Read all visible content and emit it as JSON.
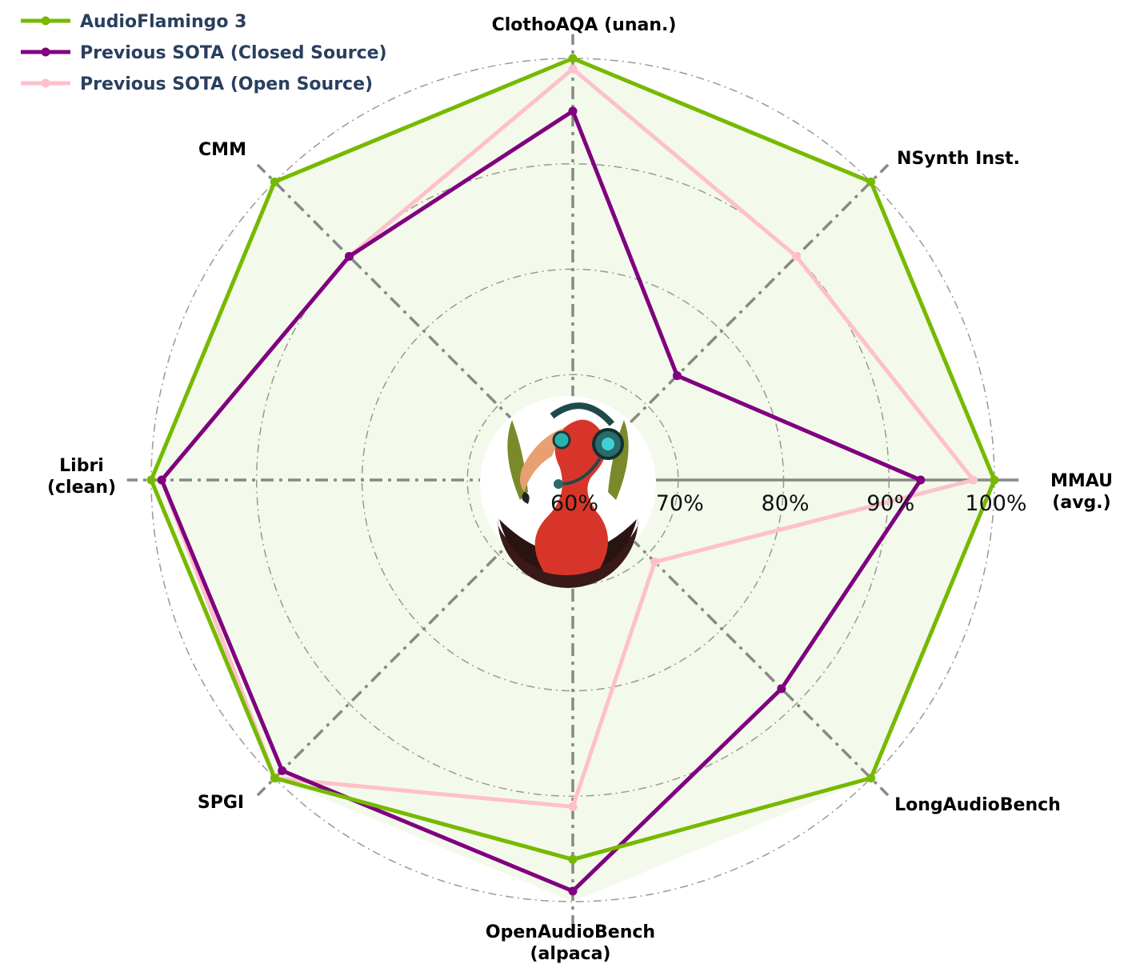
{
  "chart_data": {
    "type": "radar",
    "axes": [
      "MMAU\n(avg.)",
      "NSynth Inst.",
      "ClothoAQA (unan.)",
      "CMM",
      "Libri\n(clean)",
      "SPGI",
      "OpenAudioBench\n(alpaca)",
      "LongAudioBench"
    ],
    "radial_ticks": [
      "60%",
      "70%",
      "80%",
      "90%",
      "100%"
    ],
    "radial_range": [
      60,
      100
    ],
    "series": [
      {
        "name": "AudioFlamingo 3",
        "color": "#76b900",
        "values": [
          100,
          100,
          100,
          100,
          100,
          100,
          96,
          100
        ]
      },
      {
        "name": "Previous SOTA (Closed Source)",
        "color": "#800080",
        "values": [
          93,
          74,
          95,
          90,
          99,
          99,
          99,
          88
        ]
      },
      {
        "name": "Previous SOTA (Open Source)",
        "color": "#ffc0cb",
        "values": [
          98,
          90,
          99,
          90,
          99,
          100,
          91,
          71
        ]
      }
    ],
    "legend_position": "top-left",
    "grid": true
  },
  "logo": {
    "name": "flamingo-headphones-logo"
  },
  "colors": {
    "fill": "#f3faeb",
    "grid": "#999999",
    "axis": "#888888"
  }
}
